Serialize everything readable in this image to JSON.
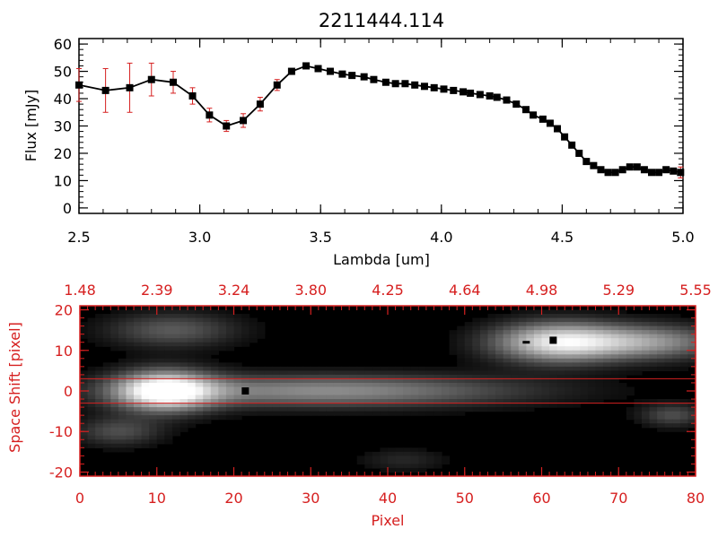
{
  "title": "2211444.114",
  "chart_data": [
    {
      "type": "line",
      "xlabel": "Lambda [um]",
      "ylabel": "Flux [mJy]",
      "xlim": [
        2.5,
        5.0
      ],
      "ylim": [
        -2,
        62
      ],
      "x_ticks": [
        "2.5",
        "3.0",
        "3.5",
        "4.0",
        "4.5",
        "5.0"
      ],
      "y_ticks": [
        "0",
        "10",
        "20",
        "30",
        "40",
        "50",
        "60"
      ],
      "line_color": "#000000",
      "marker_color": "#000000",
      "errorbar_color": "#d62020",
      "x": [
        2.5,
        2.61,
        2.71,
        2.8,
        2.89,
        2.97,
        3.04,
        3.11,
        3.18,
        3.25,
        3.32,
        3.38,
        3.44,
        3.49,
        3.54,
        3.59,
        3.63,
        3.68,
        3.72,
        3.77,
        3.81,
        3.85,
        3.89,
        3.93,
        3.97,
        4.01,
        4.05,
        4.09,
        4.12,
        4.16,
        4.2,
        4.23,
        4.27,
        4.31,
        4.35,
        4.38,
        4.42,
        4.45,
        4.48,
        4.51,
        4.54,
        4.57,
        4.6,
        4.63,
        4.66,
        4.69,
        4.72,
        4.75,
        4.78,
        4.81,
        4.84,
        4.87,
        4.9,
        4.93,
        4.96,
        4.99
      ],
      "y": [
        45,
        43,
        44,
        47,
        46,
        41,
        34,
        30,
        32,
        38,
        45,
        50,
        52,
        51,
        50,
        49,
        48.5,
        48,
        47,
        46,
        45.5,
        45.5,
        45,
        44.5,
        44,
        43.5,
        43,
        42.5,
        42,
        41.5,
        41,
        40.5,
        39.5,
        38,
        36,
        34,
        32.5,
        31,
        29,
        26,
        23,
        20,
        17,
        15.5,
        14,
        13,
        13,
        14,
        15,
        15,
        14,
        13,
        13,
        14,
        13.5,
        13
      ],
      "yerr": [
        6,
        8,
        9,
        6,
        4,
        3,
        2.5,
        2,
        2.5,
        2.5,
        2,
        1,
        1,
        1,
        1,
        1,
        1,
        1,
        1,
        1,
        1,
        1,
        1,
        1,
        1,
        1,
        1,
        1,
        1,
        1,
        1,
        1,
        1,
        1,
        1,
        1,
        1,
        1,
        1,
        1,
        1,
        1,
        1,
        1,
        1,
        1,
        1,
        1,
        1,
        1,
        1,
        1,
        1,
        1,
        1,
        2
      ]
    },
    {
      "type": "heatmap",
      "xlabel": "Pixel",
      "ylabel": "Space Shift [pixel]",
      "xlim": [
        0,
        80
      ],
      "ylim": [
        -21,
        21
      ],
      "x_ticks": [
        "0",
        "10",
        "20",
        "30",
        "40",
        "50",
        "60",
        "70",
        "80"
      ],
      "y_ticks": [
        "-20",
        "-10",
        "0",
        "10",
        "20"
      ],
      "top_ticks": [
        "1.48",
        "2.39",
        "3.24",
        "3.80",
        "4.25",
        "4.64",
        "4.98",
        "5.29",
        "5.55"
      ],
      "axis_color": "#d62020",
      "hlines": [
        3,
        -3
      ],
      "markers": [
        {
          "x": 21.5,
          "y": 0,
          "size": "small"
        },
        {
          "x": 58,
          "y": 12,
          "size": "dash"
        },
        {
          "x": 61.5,
          "y": 12.5,
          "size": "small"
        }
      ],
      "sources": [
        {
          "x": 11,
          "y": 0,
          "sx": 4.5,
          "sy": 3.5,
          "amp": 1.0
        },
        {
          "x": 32,
          "y": 0,
          "sx": 18,
          "sy": 2.8,
          "amp": 0.55
        },
        {
          "x": 62,
          "y": 12,
          "sx": 6,
          "sy": 3.5,
          "amp": 0.85
        },
        {
          "x": 74,
          "y": 12,
          "sx": 7,
          "sy": 3,
          "amp": 0.55
        },
        {
          "x": 12,
          "y": 15,
          "sx": 6,
          "sy": 3,
          "amp": 0.35
        },
        {
          "x": 5,
          "y": -10,
          "sx": 4,
          "sy": 2.5,
          "amp": 0.3
        },
        {
          "x": 77,
          "y": -6,
          "sx": 3,
          "sy": 2,
          "amp": 0.3
        },
        {
          "x": 42,
          "y": -17,
          "sx": 4,
          "sy": 2,
          "amp": 0.15
        }
      ]
    }
  ]
}
